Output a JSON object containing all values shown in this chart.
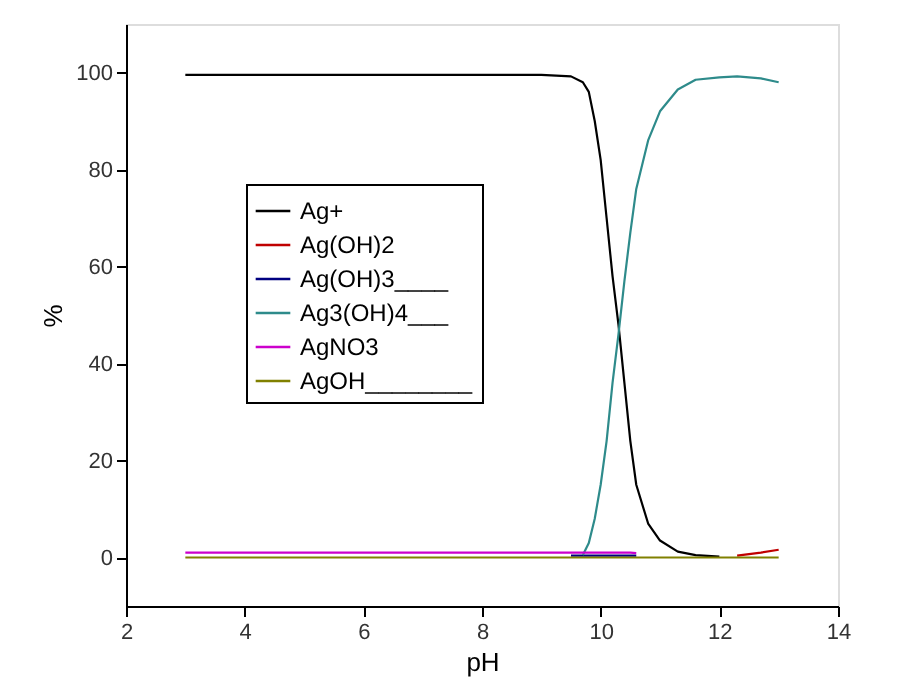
{
  "chart_data": {
    "type": "line",
    "xlabel": "pH",
    "ylabel": "%",
    "x": [
      3,
      5,
      7,
      9,
      9.5,
      9.7,
      9.8,
      9.9,
      10.0,
      10.1,
      10.2,
      10.3,
      10.4,
      10.5,
      10.6,
      10.8,
      11.0,
      11.3,
      11.6,
      12.0,
      12.3,
      12.5,
      12.7,
      13.0
    ],
    "series": [
      {
        "name": "Ag+",
        "color": "#000000",
        "values": [
          99.5,
          99.5,
          99.5,
          99.5,
          99.2,
          98,
          96,
          90,
          82,
          70,
          58,
          48,
          36,
          24,
          15,
          7,
          3.5,
          1.2,
          0.5,
          0.2,
          null,
          null,
          null,
          null
        ]
      },
      {
        "name": "Ag(OH)2",
        "color": "#c00000",
        "values": [
          null,
          null,
          null,
          null,
          null,
          null,
          null,
          null,
          null,
          null,
          null,
          null,
          null,
          null,
          null,
          null,
          null,
          null,
          null,
          null,
          0.4,
          0.7,
          1.0,
          1.6
        ]
      },
      {
        "name": "Ag(OH)3____",
        "color": "#000080",
        "values": [
          null,
          null,
          null,
          null,
          0.4,
          0.4,
          0.4,
          0.4,
          0.4,
          0.4,
          0.4,
          0.4,
          0.4,
          0.4,
          0.4,
          null,
          null,
          null,
          null,
          null,
          null,
          null,
          null,
          null
        ]
      },
      {
        "name": "Ag3(OH)4___",
        "color": "#2e8b8b",
        "values": [
          null,
          null,
          null,
          null,
          null,
          0.5,
          3,
          8,
          15,
          24,
          36,
          46,
          57,
          67,
          76,
          86,
          92,
          96.5,
          98.5,
          99,
          99.2,
          99,
          98.8,
          98
        ]
      },
      {
        "name": "AgNO3",
        "color": "#cc00cc",
        "values": [
          1.0,
          1.0,
          1.0,
          1.0,
          1.0,
          1.0,
          1.0,
          1.0,
          1.0,
          1.0,
          1.0,
          1.0,
          1.0,
          1.0,
          0.9,
          null,
          null,
          null,
          null,
          null,
          null,
          null,
          null,
          null
        ]
      },
      {
        "name": "AgOH________",
        "color": "#808000",
        "values": [
          0,
          0,
          0,
          0,
          0,
          0,
          0,
          0,
          0,
          0,
          0,
          0,
          0,
          0,
          0,
          0,
          0,
          0,
          0,
          0,
          0,
          0,
          0,
          0
        ]
      }
    ],
    "xlim": [
      2,
      14
    ],
    "xticks": [
      2,
      4,
      6,
      8,
      10,
      12,
      14
    ],
    "ylim": [
      -10,
      110
    ],
    "yticks": [
      0,
      20,
      40,
      60,
      80,
      100
    ],
    "grid": false,
    "legend": "left",
    "marker": "none",
    "line_style": "solid"
  }
}
